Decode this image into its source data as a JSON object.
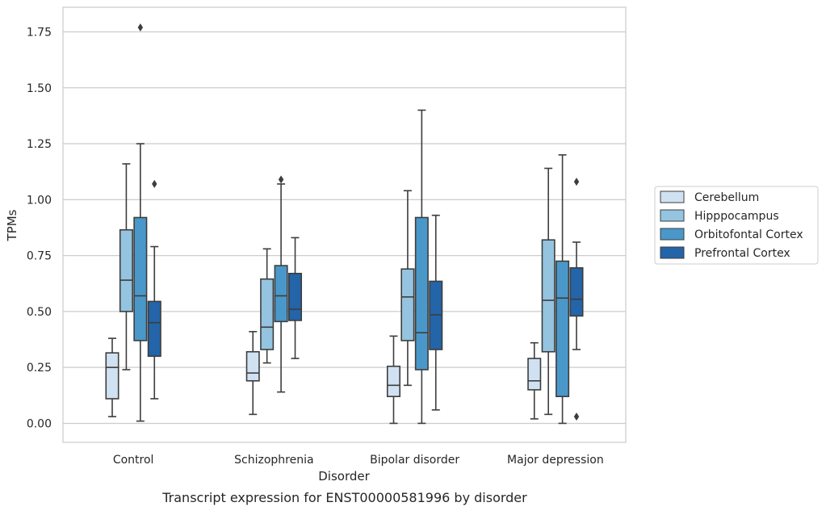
{
  "chart_data": {
    "type": "box",
    "xlabel": "Disorder",
    "ylabel": "TPMs",
    "caption": "Transcript expression for ENST00000581996 by disorder",
    "categories": [
      "Control",
      "Schizophrenia",
      "Bipolar disorder",
      "Major depression"
    ],
    "ylim": [
      -0.085,
      1.86
    ],
    "yticks": [
      0.0,
      0.25,
      0.5,
      0.75,
      1.0,
      1.25,
      1.5,
      1.75
    ],
    "ytick_labels": [
      "0.00",
      "0.25",
      "0.50",
      "0.75",
      "1.00",
      "1.25",
      "1.50",
      "1.75"
    ],
    "grid": "horizontal",
    "legend_position": "right",
    "series": [
      {
        "name": "Cerebellum",
        "color": "#d0e1f2",
        "boxes": [
          {
            "whislo": 0.03,
            "q1": 0.11,
            "med": 0.25,
            "q3": 0.315,
            "whishi": 0.38,
            "fliers": []
          },
          {
            "whislo": 0.04,
            "q1": 0.19,
            "med": 0.225,
            "q3": 0.32,
            "whishi": 0.41,
            "fliers": []
          },
          {
            "whislo": 0.0,
            "q1": 0.12,
            "med": 0.17,
            "q3": 0.255,
            "whishi": 0.39,
            "fliers": []
          },
          {
            "whislo": 0.02,
            "q1": 0.15,
            "med": 0.19,
            "q3": 0.29,
            "whishi": 0.36,
            "fliers": []
          }
        ]
      },
      {
        "name": "Hipppocampus",
        "color": "#94c4df",
        "boxes": [
          {
            "whislo": 0.24,
            "q1": 0.5,
            "med": 0.64,
            "q3": 0.865,
            "whishi": 1.16,
            "fliers": []
          },
          {
            "whislo": 0.27,
            "q1": 0.33,
            "med": 0.43,
            "q3": 0.645,
            "whishi": 0.78,
            "fliers": []
          },
          {
            "whislo": 0.17,
            "q1": 0.37,
            "med": 0.565,
            "q3": 0.69,
            "whishi": 1.04,
            "fliers": []
          },
          {
            "whislo": 0.04,
            "q1": 0.32,
            "med": 0.55,
            "q3": 0.82,
            "whishi": 1.14,
            "fliers": []
          }
        ]
      },
      {
        "name": "Orbitofontal Cortex",
        "color": "#4a98c9",
        "boxes": [
          {
            "whislo": 0.01,
            "q1": 0.37,
            "med": 0.57,
            "q3": 0.92,
            "whishi": 1.25,
            "fliers": [
              1.77
            ]
          },
          {
            "whislo": 0.14,
            "q1": 0.455,
            "med": 0.57,
            "q3": 0.705,
            "whishi": 1.07,
            "fliers": [
              1.09
            ]
          },
          {
            "whislo": 0.0,
            "q1": 0.24,
            "med": 0.405,
            "q3": 0.92,
            "whishi": 1.4,
            "fliers": []
          },
          {
            "whislo": 0.0,
            "q1": 0.12,
            "med": 0.56,
            "q3": 0.725,
            "whishi": 1.2,
            "fliers": []
          }
        ]
      },
      {
        "name": "Prefrontal Cortex",
        "color": "#2464a8",
        "boxes": [
          {
            "whislo": 0.11,
            "q1": 0.3,
            "med": 0.45,
            "q3": 0.545,
            "whishi": 0.79,
            "fliers": [
              1.07
            ]
          },
          {
            "whislo": 0.29,
            "q1": 0.46,
            "med": 0.51,
            "q3": 0.67,
            "whishi": 0.83,
            "fliers": []
          },
          {
            "whislo": 0.06,
            "q1": 0.33,
            "med": 0.485,
            "q3": 0.635,
            "whishi": 0.93,
            "fliers": []
          },
          {
            "whislo": 0.33,
            "q1": 0.48,
            "med": 0.555,
            "q3": 0.695,
            "whishi": 0.81,
            "fliers": [
              1.08,
              0.03
            ]
          }
        ]
      }
    ]
  }
}
